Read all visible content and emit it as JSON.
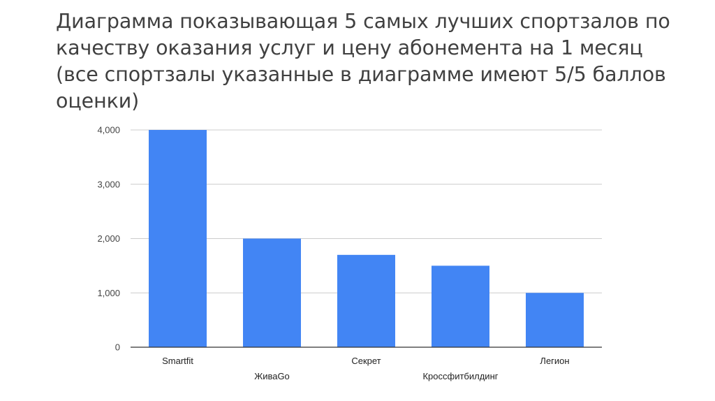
{
  "slide": {
    "title": "Диаграмма показывающая 5 самых лучших спортзалов по качеству оказания услуг и цену абонемента на 1 месяц (все спортзалы указанные в диаграмме имеют 5/5 баллов оценки)"
  },
  "chart_data": {
    "type": "bar",
    "title": "",
    "xlabel": "",
    "ylabel": "",
    "categories": [
      "Smartfit",
      "ЖиваGo",
      "Секрет",
      "Кроссфитбилдинг",
      "Легион"
    ],
    "values": [
      4000,
      2000,
      1700,
      1500,
      1000
    ],
    "ylim": [
      0,
      4000
    ],
    "yticks": [
      0,
      1000,
      2000,
      3000,
      4000
    ],
    "ytick_labels": [
      "0",
      "1,000",
      "2,000",
      "3,000",
      "4,000"
    ],
    "grid": true,
    "legend": "none",
    "bar_color": "#4285f4",
    "grid_color": "#cccccc",
    "axis_color": "#333333"
  }
}
